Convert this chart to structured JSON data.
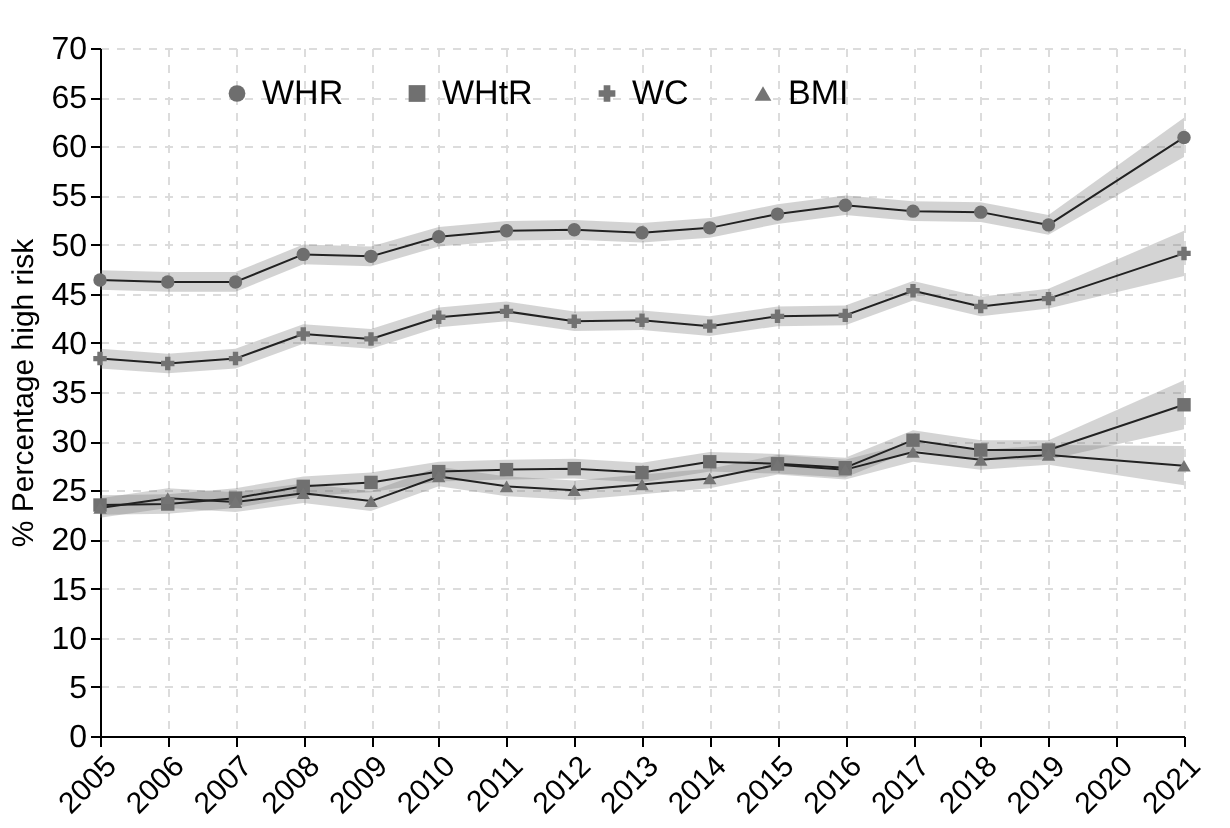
{
  "chart_data": {
    "type": "line",
    "ylabel": "% Percentage high risk",
    "x": [
      2005,
      2006,
      2007,
      2008,
      2009,
      2010,
      2011,
      2012,
      2013,
      2014,
      2015,
      2016,
      2017,
      2018,
      2019,
      2021
    ],
    "xlim": [
      2005,
      2021
    ],
    "xticks": [
      2005,
      2006,
      2007,
      2008,
      2009,
      2010,
      2011,
      2012,
      2013,
      2014,
      2015,
      2016,
      2017,
      2018,
      2019,
      2020,
      2021
    ],
    "ylim": [
      0,
      70
    ],
    "yticks": [
      0,
      5,
      10,
      15,
      20,
      25,
      30,
      35,
      40,
      45,
      50,
      55,
      60,
      65,
      70
    ],
    "grid": true,
    "legend": "top",
    "line_style": "solid",
    "series": [
      {
        "name": "WHR",
        "color": "#6e6e6e",
        "marker": "circle",
        "values": [
          46.4,
          46.2,
          46.2,
          49.0,
          48.8,
          50.8,
          51.4,
          51.5,
          51.2,
          51.7,
          53.1,
          54.0,
          53.4,
          53.3,
          52.0,
          60.9
        ],
        "lower": [
          45.4,
          45.2,
          45.2,
          48.0,
          47.8,
          49.8,
          50.4,
          50.5,
          50.2,
          50.7,
          52.1,
          53.0,
          52.4,
          52.3,
          51.0,
          58.9
        ],
        "upper": [
          47.4,
          47.2,
          47.2,
          50.0,
          49.8,
          51.8,
          52.4,
          52.5,
          52.2,
          52.7,
          54.1,
          55.0,
          54.4,
          54.3,
          53.0,
          62.9
        ]
      },
      {
        "name": "WHtR",
        "color": "#707070",
        "marker": "square",
        "values": [
          23.5,
          23.6,
          24.2,
          25.4,
          25.8,
          26.9,
          27.1,
          27.2,
          26.8,
          27.9,
          27.7,
          27.3,
          30.1,
          29.1,
          29.1,
          33.7
        ],
        "lower": [
          22.5,
          22.6,
          23.2,
          24.4,
          24.8,
          25.9,
          26.1,
          26.2,
          25.8,
          26.9,
          26.7,
          26.3,
          29.1,
          28.1,
          28.1,
          31.2
        ],
        "upper": [
          24.5,
          24.6,
          25.2,
          26.4,
          26.8,
          27.9,
          28.1,
          28.2,
          27.8,
          28.9,
          28.7,
          28.3,
          31.1,
          30.1,
          30.1,
          36.2
        ]
      },
      {
        "name": "WC",
        "color": "#727272",
        "marker": "cross",
        "values": [
          38.4,
          37.9,
          38.4,
          40.9,
          40.4,
          42.6,
          43.2,
          42.2,
          42.3,
          41.7,
          42.7,
          42.8,
          45.3,
          43.7,
          44.5,
          49.1
        ],
        "lower": [
          37.4,
          36.9,
          37.4,
          39.9,
          39.4,
          41.6,
          42.2,
          41.2,
          41.3,
          40.7,
          41.7,
          41.8,
          44.3,
          42.7,
          43.5,
          46.8
        ],
        "upper": [
          39.4,
          38.9,
          39.4,
          41.9,
          41.4,
          43.6,
          44.2,
          43.2,
          43.3,
          42.7,
          43.7,
          43.8,
          46.3,
          44.7,
          45.5,
          51.4
        ]
      },
      {
        "name": "BMI",
        "color": "#747474",
        "marker": "triangle",
        "values": [
          23.2,
          24.2,
          23.8,
          24.7,
          23.9,
          26.4,
          25.4,
          25.0,
          25.6,
          26.2,
          27.6,
          27.1,
          28.9,
          28.1,
          28.6,
          27.5
        ],
        "lower": [
          22.2,
          23.2,
          22.8,
          23.7,
          22.9,
          25.4,
          24.4,
          24.0,
          24.6,
          25.2,
          26.6,
          26.1,
          27.9,
          27.1,
          27.6,
          25.5
        ],
        "upper": [
          24.2,
          25.2,
          24.8,
          25.7,
          24.9,
          27.4,
          26.4,
          26.0,
          26.6,
          27.2,
          28.6,
          28.1,
          29.9,
          29.1,
          29.6,
          29.5
        ]
      }
    ]
  }
}
